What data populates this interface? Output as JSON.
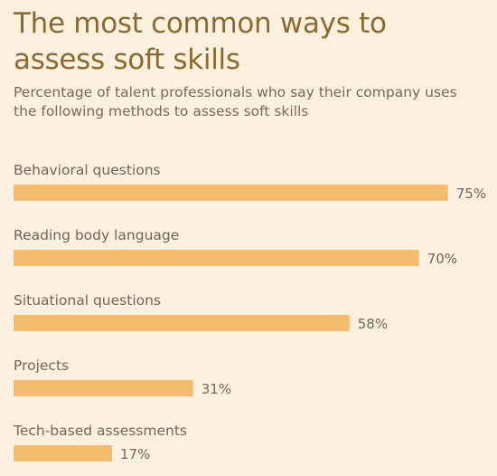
{
  "chart_data": {
    "type": "bar",
    "orientation": "horizontal",
    "title": "The most common ways to assess soft skills",
    "subtitle": "Percentage of talent professionals who say their company uses the following methods to assess soft skills",
    "categories": [
      "Behavioral questions",
      "Reading body language",
      "Situational questions",
      "Projects",
      "Tech-based assessments"
    ],
    "values": [
      75,
      70,
      58,
      31,
      17
    ],
    "value_labels": [
      "75%",
      "70%",
      "58%",
      "31%",
      "17%"
    ],
    "xlim": [
      0,
      100
    ],
    "grid": false,
    "legend": "none",
    "colors": {
      "bar": "#f5bc6e",
      "background": "#fcf1df",
      "title": "#8c6a2e",
      "text": "#6f665c"
    }
  }
}
